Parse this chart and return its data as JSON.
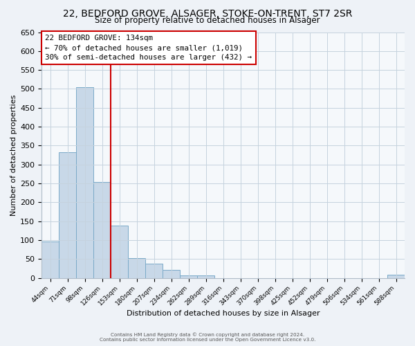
{
  "title": "22, BEDFORD GROVE, ALSAGER, STOKE-ON-TRENT, ST7 2SR",
  "subtitle": "Size of property relative to detached houses in Alsager",
  "xlabel": "Distribution of detached houses by size in Alsager",
  "ylabel": "Number of detached properties",
  "bar_labels": [
    "44sqm",
    "71sqm",
    "98sqm",
    "126sqm",
    "153sqm",
    "180sqm",
    "207sqm",
    "234sqm",
    "262sqm",
    "289sqm",
    "316sqm",
    "343sqm",
    "370sqm",
    "398sqm",
    "425sqm",
    "452sqm",
    "479sqm",
    "506sqm",
    "534sqm",
    "561sqm",
    "588sqm"
  ],
  "bar_values": [
    97,
    333,
    505,
    253,
    138,
    53,
    38,
    21,
    7,
    7,
    0,
    0,
    0,
    0,
    0,
    0,
    0,
    0,
    0,
    0,
    8
  ],
  "bar_color": "#c8d8e8",
  "bar_edgecolor": "#7aaac8",
  "vline_x_index": 3,
  "vline_color": "#cc0000",
  "annotation_line1": "22 BEDFORD GROVE: 134sqm",
  "annotation_line2": "← 70% of detached houses are smaller (1,019)",
  "annotation_line3": "30% of semi-detached houses are larger (432) →",
  "annotation_box_edgecolor": "#cc0000",
  "annotation_box_facecolor": "#ffffff",
  "ylim_max": 650,
  "ytick_step": 50,
  "footer1": "Contains HM Land Registry data © Crown copyright and database right 2024.",
  "footer2": "Contains public sector information licensed under the Open Government Licence v3.0.",
  "bg_color": "#eef2f7",
  "plot_bg_color": "#f5f8fb",
  "grid_color": "#c5d2de"
}
